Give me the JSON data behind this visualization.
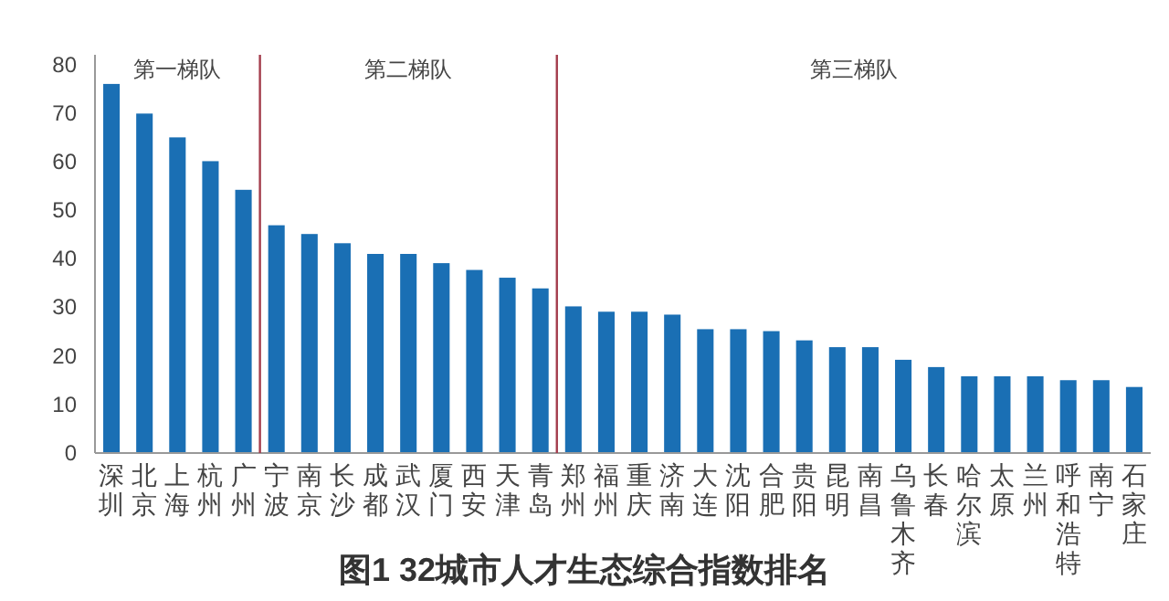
{
  "chart_data": {
    "type": "bar",
    "title": "图1 32城市人才生态综合指数排名",
    "categories": [
      "深圳",
      "北京",
      "上海",
      "杭州",
      "广州",
      "宁波",
      "南京",
      "长沙",
      "成都",
      "武汉",
      "厦门",
      "西安",
      "天津",
      "青岛",
      "郑州",
      "福州",
      "重庆",
      "济南",
      "大连",
      "沈阳",
      "合肥",
      "贵阳",
      "昆明",
      "南昌",
      "乌鲁木齐",
      "长春",
      "哈尔滨",
      "太原",
      "兰州",
      "呼和浩特",
      "南宁",
      "石家庄"
    ],
    "values": [
      76.0,
      69.9,
      65.0,
      60.1,
      54.2,
      46.9,
      45.1,
      43.2,
      41.0,
      41.0,
      39.1,
      37.7,
      36.1,
      33.9,
      30.2,
      29.1,
      29.1,
      28.5,
      25.5,
      25.5,
      25.1,
      23.2,
      21.8,
      21.8,
      19.2,
      17.7,
      15.8,
      15.8,
      15.8,
      15.0,
      15.0,
      13.6
    ],
    "color": "#1a6fb4",
    "ylim": [
      0,
      82
    ],
    "yticks": [
      0,
      10,
      20,
      30,
      40,
      50,
      60,
      70,
      80
    ],
    "grid": false,
    "annotations": [
      "第一梯队",
      "第二梯队",
      "第三梯队"
    ]
  }
}
